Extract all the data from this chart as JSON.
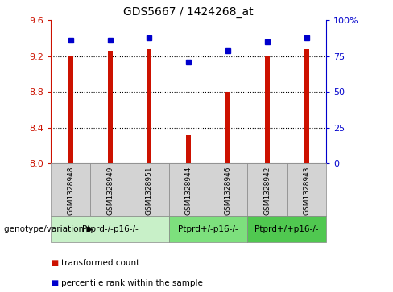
{
  "title": "GDS5667 / 1424268_at",
  "samples": [
    "GSM1328948",
    "GSM1328949",
    "GSM1328951",
    "GSM1328944",
    "GSM1328946",
    "GSM1328942",
    "GSM1328943"
  ],
  "bar_values": [
    9.2,
    9.25,
    9.28,
    8.32,
    8.8,
    9.2,
    9.28
  ],
  "dot_values": [
    86,
    86,
    88,
    71,
    79,
    85,
    88
  ],
  "groups": [
    {
      "label": "Ptprd-/-p16-/-",
      "start": 0,
      "end": 2,
      "color": "#c8f0c8"
    },
    {
      "label": "Ptprd+/-p16-/-",
      "start": 3,
      "end": 4,
      "color": "#7de07d"
    },
    {
      "label": "Ptprd+/+p16-/-",
      "start": 5,
      "end": 6,
      "color": "#50c850"
    }
  ],
  "ylim_left": [
    8.0,
    9.6
  ],
  "ylim_right": [
    0,
    100
  ],
  "yticks_left": [
    8.0,
    8.4,
    8.8,
    9.2,
    9.6
  ],
  "yticks_right": [
    0,
    25,
    50,
    75,
    100
  ],
  "bar_color": "#cc1100",
  "dot_color": "#0000cc",
  "grid_lines": [
    8.4,
    8.8,
    9.2
  ],
  "label_color_left": "#cc1100",
  "label_color_right": "#0000cc",
  "xlabel_bottom": "genotype/variation",
  "legend_bar": "transformed count",
  "legend_dot": "percentile rank within the sample",
  "bar_width": 0.12,
  "sample_bg_color": "#d3d3d3",
  "sample_edge_color": "#888888"
}
